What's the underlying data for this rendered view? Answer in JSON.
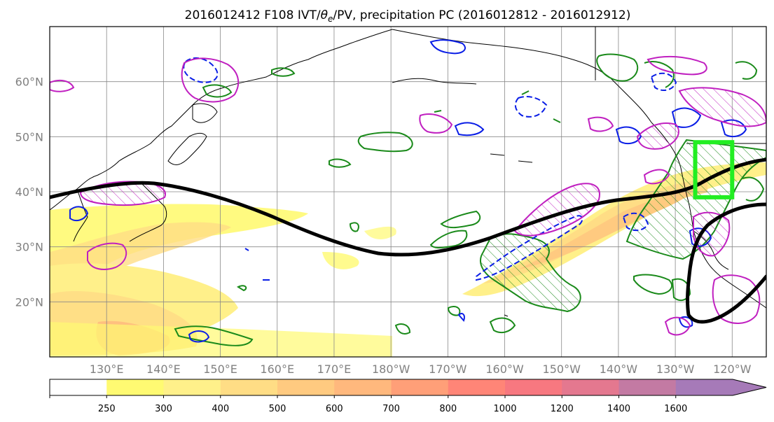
{
  "title": {
    "prefix": "2016012412 F108 IVT/",
    "theta": "θ",
    "theta_sub": "e",
    "suffix": "/PV, precipitation PC (2016012812 - 2016012912)"
  },
  "map": {
    "lat_labels": [
      "60°N",
      "50°N",
      "40°N",
      "30°N",
      "20°N"
    ],
    "lat_values": [
      60,
      50,
      40,
      30,
      20
    ],
    "lon_labels": [
      "130°E",
      "140°E",
      "150°E",
      "160°E",
      "170°E",
      "180°W",
      "170°W",
      "160°W",
      "150°W",
      "140°W",
      "130°W",
      "120°W"
    ],
    "lon_values": [
      130,
      140,
      150,
      160,
      170,
      180,
      190,
      200,
      210,
      220,
      230,
      240
    ],
    "extent": {
      "lon_min": 120,
      "lon_max": 246,
      "lat_min": 10,
      "lat_max": 70
    },
    "target_box": {
      "lon": [
        233.5,
        240
      ],
      "lat": [
        39,
        49
      ]
    }
  },
  "colorbar": {
    "ticks": [
      "250",
      "300",
      "400",
      "500",
      "600",
      "700",
      "800",
      "1000",
      "1200",
      "1400",
      "1600"
    ],
    "colors": [
      "#ffffff",
      "#fffa72",
      "#fff08a",
      "#ffdd85",
      "#ffca80",
      "#ffb87d",
      "#ff9f78",
      "#ff8577",
      "#f77880",
      "#e4788f",
      "#c37aa3",
      "#a67ab8"
    ]
  },
  "colors": {
    "jet": "#000000",
    "green_contour": "#1a8a1a",
    "blue_contour": "#0a1ee6",
    "magenta_contour": "#c020c0",
    "target_box": "#22ee22",
    "grid": "#888888"
  }
}
